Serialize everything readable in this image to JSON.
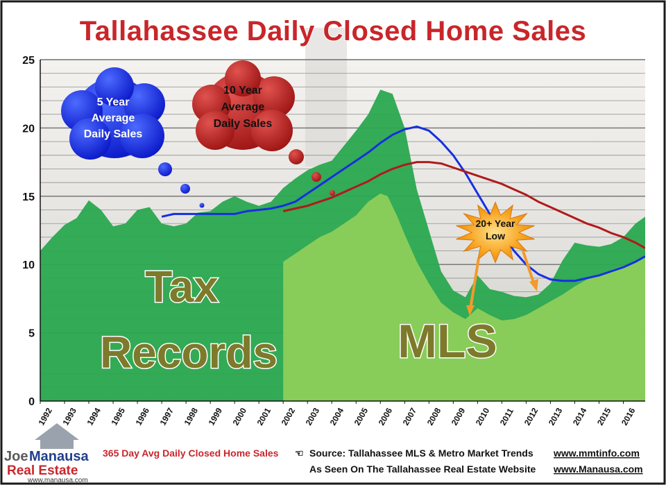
{
  "title": "Tallahassee Daily Closed Home Sales",
  "labels": {
    "tax_records_line1": "Tax",
    "tax_records_line2": "Records",
    "mls": "MLS",
    "bubble_5yr": [
      "5 Year",
      "Average",
      "Daily Sales"
    ],
    "bubble_10yr": [
      "10 Year",
      "Average",
      "Daily Sales"
    ],
    "burst": [
      "20+ Year",
      "Low"
    ]
  },
  "footer": {
    "series_label": "365 Day Avg Daily Closed Home Sales",
    "source": "Source:  Tallahassee MLS & Metro Market Trends",
    "source_link": "www.mmtinfo.com",
    "seen_on": "As Seen On The Tallahassee Real Estate Website",
    "seen_link": "www.Manausa.com"
  },
  "logo": {
    "joe": "Joe",
    "manausa": "Manausa",
    "real_estate": "Real Estate",
    "url": "www.manausa.com"
  },
  "colors": {
    "tax_area": "#2aa84f",
    "mls_area": "#8fcf5a",
    "five_year": "#1530e0",
    "ten_year": "#b01a1a",
    "title": "#c8262b",
    "burst": "#f7a21d"
  },
  "chart_data": {
    "type": "area",
    "x_ticks": [
      "1992",
      "1993",
      "1994",
      "1995",
      "1996",
      "1997",
      "1998",
      "1999",
      "2000",
      "2001",
      "2002",
      "2003",
      "2004",
      "2005",
      "2006",
      "2007",
      "2008",
      "2009",
      "2010",
      "2011",
      "2012",
      "2013",
      "2014",
      "2015",
      "2016"
    ],
    "y_ticks": [
      0,
      5,
      10,
      15,
      20,
      25
    ],
    "ylim": [
      0,
      25
    ],
    "xlim": [
      1992,
      2016.9
    ],
    "grid": true,
    "series": [
      {
        "name": "Tax Records",
        "kind": "area",
        "x": [
          1992,
          1992.5,
          1993,
          1993.5,
          1994,
          1994.5,
          1995,
          1995.5,
          1996,
          1996.5,
          1997,
          1997.5,
          1998,
          1998.5,
          1999,
          1999.5,
          2000,
          2000.5,
          2001,
          2001.5,
          2002,
          2002.5,
          2003,
          2003.5,
          2004,
          2004.5,
          2005,
          2005.5,
          2006,
          2006.5,
          2007,
          2007.5,
          2008,
          2008.5,
          2009,
          2009.5,
          2010,
          2010.5,
          2011,
          2011.5,
          2012,
          2012.5,
          2013,
          2013.5,
          2014,
          2014.5,
          2015,
          2015.5,
          2016,
          2016.5,
          2016.9
        ],
        "values": [
          11.0,
          12.0,
          12.9,
          13.4,
          14.7,
          14.0,
          12.8,
          13.0,
          14.0,
          14.2,
          13.0,
          12.8,
          13.0,
          13.8,
          13.9,
          14.6,
          15.0,
          14.6,
          14.3,
          14.6,
          15.6,
          16.3,
          16.9,
          17.3,
          17.6,
          18.7,
          19.8,
          21.0,
          22.8,
          22.5,
          20.0,
          15.5,
          12.5,
          9.5,
          8.1,
          7.6,
          9.2,
          8.2,
          8.0,
          7.7,
          7.6,
          7.8,
          8.6,
          10.3,
          11.6,
          11.4,
          11.3,
          11.5,
          12.0,
          13.0,
          13.5
        ]
      },
      {
        "name": "MLS",
        "kind": "area",
        "x": [
          2002,
          2002.5,
          2003,
          2003.5,
          2004,
          2004.5,
          2005,
          2005.5,
          2006,
          2006.3,
          2006.7,
          2007,
          2007.5,
          2008,
          2008.5,
          2009,
          2009.5,
          2010,
          2010.5,
          2011,
          2011.5,
          2012,
          2012.5,
          2013,
          2013.5,
          2014,
          2014.5,
          2015,
          2015.5,
          2016,
          2016.5,
          2016.9
        ],
        "values": [
          10.2,
          10.8,
          11.4,
          12.0,
          12.4,
          13.0,
          13.6,
          14.6,
          15.2,
          15.0,
          13.5,
          12.2,
          10.2,
          8.6,
          7.2,
          6.5,
          6.0,
          6.8,
          6.3,
          5.9,
          6.0,
          6.3,
          6.8,
          7.3,
          7.8,
          8.4,
          8.9,
          9.2,
          9.6,
          9.9,
          10.2,
          10.6
        ]
      },
      {
        "name": "5 Year Average Daily Sales",
        "kind": "line",
        "x": [
          1997,
          1997.5,
          1998,
          1998.5,
          1999,
          1999.5,
          2000,
          2000.5,
          2001,
          2001.5,
          2002,
          2002.5,
          2003,
          2003.5,
          2004,
          2004.5,
          2005,
          2005.5,
          2006,
          2006.5,
          2007,
          2007.5,
          2008,
          2008.5,
          2009,
          2009.5,
          2010,
          2010.5,
          2011,
          2011.5,
          2012,
          2012.5,
          2013,
          2013.5,
          2014,
          2014.5,
          2015,
          2015.5,
          2016,
          2016.5,
          2016.9
        ],
        "values": [
          13.5,
          13.7,
          13.7,
          13.7,
          13.7,
          13.7,
          13.7,
          13.9,
          14.0,
          14.1,
          14.3,
          14.6,
          15.2,
          15.8,
          16.4,
          17.0,
          17.6,
          18.2,
          18.9,
          19.5,
          19.9,
          20.1,
          19.8,
          19.0,
          18.0,
          16.7,
          15.2,
          13.7,
          12.3,
          11.0,
          10.0,
          9.3,
          8.9,
          8.8,
          8.8,
          9.0,
          9.2,
          9.5,
          9.8,
          10.2,
          10.6
        ]
      },
      {
        "name": "10 Year Average Daily Sales",
        "kind": "line",
        "x": [
          2002,
          2002.5,
          2003,
          2003.5,
          2004,
          2004.5,
          2005,
          2005.5,
          2006,
          2006.5,
          2007,
          2007.5,
          2008,
          2008.5,
          2009,
          2009.5,
          2010,
          2010.5,
          2011,
          2011.5,
          2012,
          2012.5,
          2013,
          2013.5,
          2014,
          2014.5,
          2015,
          2015.5,
          2016,
          2016.5,
          2016.9
        ],
        "values": [
          13.9,
          14.1,
          14.3,
          14.6,
          14.9,
          15.3,
          15.7,
          16.1,
          16.6,
          17.0,
          17.3,
          17.5,
          17.5,
          17.4,
          17.1,
          16.8,
          16.5,
          16.2,
          15.9,
          15.5,
          15.1,
          14.6,
          14.2,
          13.8,
          13.4,
          13.0,
          12.7,
          12.3,
          12.0,
          11.6,
          11.2
        ]
      }
    ]
  }
}
